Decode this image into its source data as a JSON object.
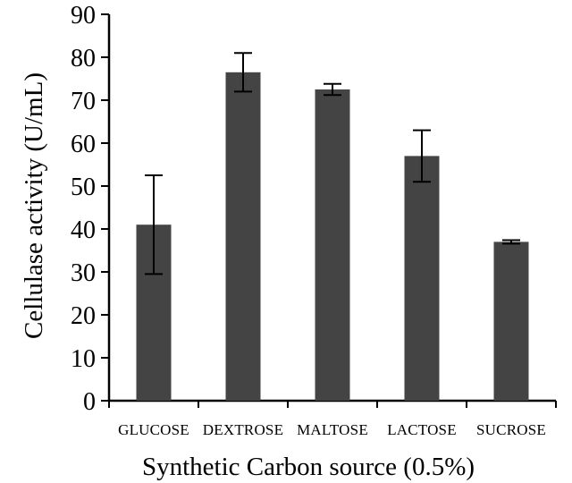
{
  "chart_data": {
    "type": "bar",
    "categories": [
      "GLUCOSE",
      "DEXTROSE",
      "MALTOSE",
      "LACTOSE",
      "SUCROSE"
    ],
    "values": [
      41,
      76.5,
      72.5,
      57,
      37
    ],
    "error_bars": [
      11.5,
      4.5,
      1.3,
      6,
      0.4
    ],
    "title": "",
    "xlabel": "Synthetic Carbon source (0.5%)",
    "ylabel": "Cellulase activity (U/mL)",
    "ylim": [
      0,
      90
    ],
    "yticks": [
      0,
      10,
      20,
      30,
      40,
      50,
      60,
      70,
      80,
      90
    ],
    "grid": false,
    "bar_color": "#444444",
    "axis_color": "#000000",
    "errorbar_color": "#000000"
  }
}
